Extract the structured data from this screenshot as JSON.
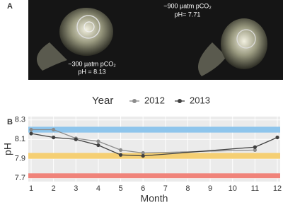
{
  "panel_a": {
    "label": "A",
    "left_text": [
      "~300 µatm pCO₂",
      "pH = 8.13"
    ],
    "right_text": [
      "~900 µatm pCO₂",
      "pH= 7.71"
    ]
  },
  "chart_data": {
    "type": "line",
    "panel_label": "B",
    "legend_title": "Year",
    "xlabel": "Month",
    "ylabel": "pH",
    "series": [
      {
        "name": "2012",
        "color": "#8c8c8c",
        "x": [
          1,
          2,
          3,
          4,
          5,
          6,
          11
        ],
        "values": [
          8.2,
          8.2,
          8.11,
          8.08,
          7.99,
          7.96,
          7.99
        ]
      },
      {
        "name": "2013",
        "color": "#404040",
        "x": [
          1,
          2,
          3,
          4,
          5,
          6,
          11,
          12
        ],
        "values": [
          8.16,
          8.12,
          8.1,
          8.04,
          7.94,
          7.93,
          8.02,
          8.12
        ]
      }
    ],
    "bands": [
      {
        "color": "#8ec5ec",
        "range": [
          8.17,
          8.23
        ]
      },
      {
        "color": "#f5cf73",
        "range": [
          7.9,
          7.96
        ]
      },
      {
        "color": "#f0837a",
        "range": [
          7.7,
          7.75
        ]
      }
    ],
    "xlim": [
      1,
      12
    ],
    "xticks": [
      1,
      2,
      3,
      4,
      5,
      6,
      7,
      8,
      9,
      10,
      11,
      12
    ],
    "ylim": [
      7.665,
      8.335
    ],
    "yticks": [
      7.7,
      7.9,
      8.1,
      8.3
    ],
    "grid": true
  }
}
